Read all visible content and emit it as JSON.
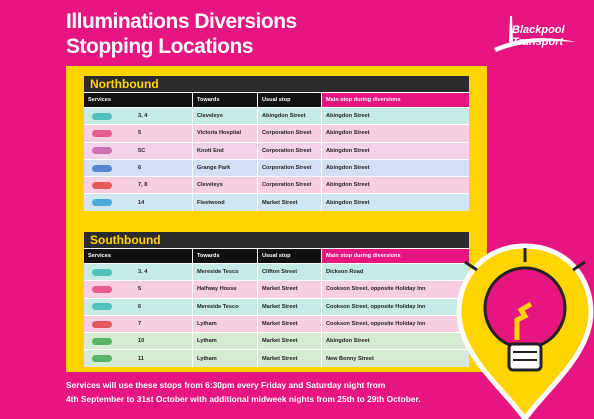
{
  "header": {
    "title": [
      "Illuminations Diversions",
      "Stopping Locations"
    ],
    "logo": [
      "Blackpool",
      "Transport"
    ]
  },
  "tables": [
    {
      "title": "Northbound",
      "columns": [
        "Services",
        "Towards",
        "Usual stop",
        "Main stop during diversions"
      ],
      "rows": [
        [
          "3, 4",
          "Cleveleys",
          "Abingdon Street",
          "Abingdon Street"
        ],
        [
          "5",
          "Victoria Hospital",
          "Corporation Street",
          "Abingdon Street"
        ],
        [
          "5C",
          "Knott End",
          "Corporation Street",
          "Abingdon Street"
        ],
        [
          "6",
          "Grange Park",
          "Corporation Street",
          "Abingdon Street"
        ],
        [
          "7, 8",
          "Cleveleys",
          "Corporation Street",
          "Abingdon Street"
        ],
        [
          "14",
          "Fleetwood",
          "Market Street",
          "Abingdon Street"
        ]
      ]
    },
    {
      "title": "Southbound",
      "columns": [
        "Services",
        "Towards",
        "Usual stop",
        "Main stop during diversions"
      ],
      "rows": [
        [
          "3, 4",
          "Mereside Tesco",
          "Clifton Street",
          "Dickson Road"
        ],
        [
          "5",
          "Halfway House",
          "Market Street",
          "Cookson Street, opposite Holiday Inn"
        ],
        [
          "6",
          "Mereside Tesco",
          "Market Street",
          "Cookson Street, opposite Holiday Inn"
        ],
        [
          "7",
          "Lytham",
          "Market Street",
          "Cookson Street, opposite Holiday Inn"
        ],
        [
          "10",
          "Lytham",
          "Market Street",
          "Abingdon Street"
        ],
        [
          "11",
          "Lytham",
          "Market Street",
          "New Bonny Street"
        ]
      ]
    }
  ],
  "footer": [
    "Services will use these stops from 6:30pm every Friday and Saturday night from",
    "4th September to 31st October with additional midweek nights from 25th to 29th October."
  ]
}
